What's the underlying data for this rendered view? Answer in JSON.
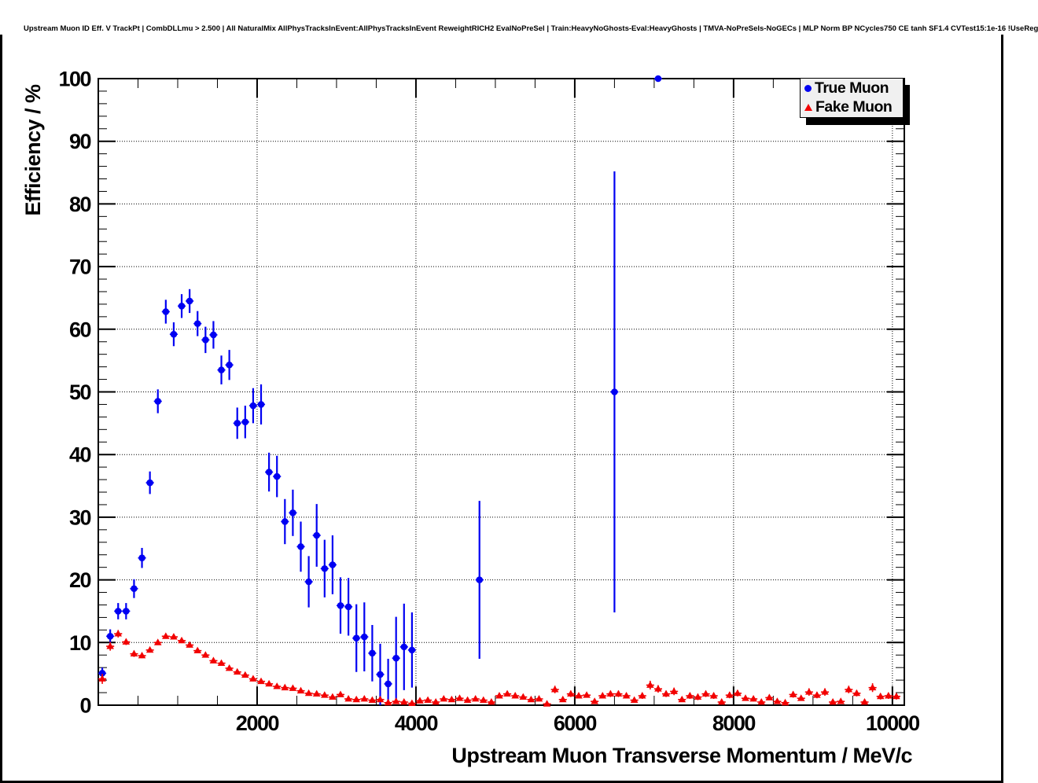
{
  "window": {
    "title": "Upstream Muon ID Eff. V TrackPt | CombDLLmu > 2.500 | All NaturalMix AllPhysTracksInEvent:AllPhysTracksInEvent ReweightRICH2 EvalNoPreSel | Train:HeavyNoGhosts-Eval:HeavyGhosts | TMVA-NoPreSels-NoGECs | MLP Norm BP NCycles750 CE tanh SF1.4 CVTest15:1e-16 !UseReg"
  },
  "chart_data": {
    "type": "scatter",
    "title": "Upstream Muon ID Eff. V TrackPt | CombDLLmu > 2.500 | All NaturalMix AllPhysTracksInEvent:AllPhysTracksInEvent ReweightRICH2 EvalNoPreSel | Train:HeavyNoGhosts-Eval:HeavyGhosts | TMVA-NoPreSels-NoGECs | MLP Norm BP NCycles750 CE tanh SF1.4 CVTest15:1e-16 !UseReg",
    "xlabel": "Upstream Muon Transverse Momentum / MeV/c",
    "ylabel": "Efficiency / %",
    "xlim": [
      0,
      10150
    ],
    "ylim": [
      0,
      100
    ],
    "xticks": [
      2000,
      4000,
      6000,
      8000,
      10000
    ],
    "yticks": [
      0,
      10,
      20,
      30,
      40,
      50,
      60,
      70,
      80,
      90,
      100
    ],
    "x_minor_step": 500,
    "y_minor_step": 2,
    "grid": true,
    "grid_style": "dotted",
    "legend_position": "top-right",
    "legend_fill": "#f0f0f0",
    "series": [
      {
        "name": "True Muon",
        "color": "#0000f2",
        "marker": "circle",
        "line_width": 2.2,
        "x_halfwidth": 50,
        "points": [
          [
            50,
            5.1,
            0.9
          ],
          [
            150,
            11.0,
            1.1
          ],
          [
            250,
            15.0,
            1.3
          ],
          [
            350,
            15.0,
            1.3
          ],
          [
            450,
            18.6,
            1.5
          ],
          [
            550,
            23.5,
            1.6
          ],
          [
            650,
            35.5,
            1.8
          ],
          [
            750,
            48.5,
            1.9
          ],
          [
            850,
            62.8,
            1.9
          ],
          [
            950,
            59.2,
            1.9
          ],
          [
            1050,
            63.7,
            1.9
          ],
          [
            1150,
            64.5,
            1.9
          ],
          [
            1250,
            60.9,
            2.0
          ],
          [
            1350,
            58.3,
            2.1
          ],
          [
            1450,
            59.1,
            2.2
          ],
          [
            1550,
            53.5,
            2.3
          ],
          [
            1650,
            54.3,
            2.4
          ],
          [
            1750,
            45.0,
            2.5
          ],
          [
            1850,
            45.2,
            2.6
          ],
          [
            1950,
            47.8,
            2.8
          ],
          [
            2050,
            48.0,
            3.2
          ],
          [
            2150,
            37.2,
            3.1
          ],
          [
            2250,
            36.5,
            3.3
          ],
          [
            2350,
            29.3,
            3.6
          ],
          [
            2450,
            30.7,
            3.7
          ],
          [
            2550,
            25.3,
            4.0
          ],
          [
            2650,
            19.7,
            4.1
          ],
          [
            2750,
            27.1,
            5.0
          ],
          [
            2850,
            21.8,
            4.6
          ],
          [
            2950,
            22.4,
            4.7
          ],
          [
            3050,
            15.9,
            4.5
          ],
          [
            3150,
            15.7,
            4.6
          ],
          [
            3250,
            10.7,
            5.4
          ],
          [
            3350,
            10.9,
            5.5
          ],
          [
            3450,
            8.3,
            4.5
          ],
          [
            3550,
            4.9,
            4.9
          ],
          [
            3650,
            3.4,
            4.0
          ],
          [
            3750,
            7.5,
            6.6
          ],
          [
            3850,
            9.3,
            6.9
          ],
          [
            3950,
            8.8,
            6.0
          ],
          [
            4800,
            20.0,
            12.6
          ],
          [
            6500,
            50.0,
            35.2
          ],
          [
            7050,
            100.0,
            0
          ]
        ]
      },
      {
        "name": "Fake Muon",
        "color": "#f20000",
        "marker": "triangle",
        "line_width": 1.6,
        "x_halfwidth": 50,
        "points": [
          [
            50,
            4.2,
            0.8
          ],
          [
            150,
            9.4,
            0.7
          ],
          [
            250,
            11.4,
            0.6
          ],
          [
            350,
            10.1,
            0.5
          ],
          [
            450,
            8.2,
            0.5
          ],
          [
            550,
            7.9,
            0.4
          ],
          [
            650,
            8.8,
            0.4
          ],
          [
            750,
            10.0,
            0.4
          ],
          [
            850,
            11.0,
            0.4
          ],
          [
            950,
            10.9,
            0.4
          ],
          [
            1050,
            10.3,
            0.4
          ],
          [
            1150,
            9.6,
            0.4
          ],
          [
            1250,
            8.7,
            0.4
          ],
          [
            1350,
            8.0,
            0.4
          ],
          [
            1450,
            7.1,
            0.4
          ],
          [
            1550,
            6.7,
            0.4
          ],
          [
            1650,
            5.9,
            0.4
          ],
          [
            1750,
            5.3,
            0.4
          ],
          [
            1850,
            4.8,
            0.4
          ],
          [
            1950,
            4.2,
            0.4
          ],
          [
            2050,
            3.8,
            0.4
          ],
          [
            2150,
            3.4,
            0.3
          ],
          [
            2250,
            3.0,
            0.3
          ],
          [
            2350,
            2.8,
            0.3
          ],
          [
            2450,
            2.7,
            0.3
          ],
          [
            2550,
            2.3,
            0.3
          ],
          [
            2650,
            1.9,
            0.3
          ],
          [
            2750,
            1.8,
            0.3
          ],
          [
            2850,
            1.6,
            0.3
          ],
          [
            2950,
            1.3,
            0.3
          ],
          [
            3050,
            1.7,
            0.3
          ],
          [
            3150,
            1.0,
            0.2
          ],
          [
            3250,
            0.9,
            0.2
          ],
          [
            3350,
            1.0,
            0.2
          ],
          [
            3450,
            0.8,
            0.2
          ],
          [
            3550,
            0.9,
            0.2
          ],
          [
            3650,
            0.4,
            0.2
          ],
          [
            3750,
            0.6,
            0.2
          ],
          [
            3850,
            0.5,
            0.2
          ],
          [
            3950,
            0.3,
            0.2
          ],
          [
            4050,
            0.7,
            0.3
          ],
          [
            4150,
            0.8,
            0.3
          ],
          [
            4250,
            0.5,
            0.2
          ],
          [
            4350,
            1.0,
            0.3
          ],
          [
            4450,
            0.9,
            0.3
          ],
          [
            4550,
            1.1,
            0.3
          ],
          [
            4650,
            0.8,
            0.3
          ],
          [
            4750,
            1.0,
            0.3
          ],
          [
            4850,
            0.8,
            0.3
          ],
          [
            4950,
            0.5,
            0.3
          ],
          [
            5050,
            1.5,
            0.4
          ],
          [
            5150,
            1.8,
            0.4
          ],
          [
            5250,
            1.5,
            0.4
          ],
          [
            5350,
            1.3,
            0.4
          ],
          [
            5450,
            0.9,
            0.3
          ],
          [
            5550,
            1.0,
            0.3
          ],
          [
            5650,
            0.2,
            0.2
          ],
          [
            5750,
            2.5,
            0.6
          ],
          [
            5850,
            0.9,
            0.4
          ],
          [
            5950,
            1.8,
            0.5
          ],
          [
            6050,
            1.5,
            0.4
          ],
          [
            6150,
            1.6,
            0.4
          ],
          [
            6250,
            0.6,
            0.3
          ],
          [
            6350,
            1.5,
            0.4
          ],
          [
            6450,
            1.8,
            0.5
          ],
          [
            6550,
            1.8,
            0.5
          ],
          [
            6650,
            1.5,
            0.4
          ],
          [
            6750,
            0.8,
            0.4
          ],
          [
            6850,
            1.5,
            0.5
          ],
          [
            6950,
            3.2,
            0.7
          ],
          [
            7050,
            2.6,
            0.6
          ],
          [
            7150,
            1.8,
            0.5
          ],
          [
            7250,
            2.2,
            0.6
          ],
          [
            7350,
            0.9,
            0.4
          ],
          [
            7450,
            1.5,
            0.5
          ],
          [
            7550,
            1.3,
            0.5
          ],
          [
            7650,
            1.8,
            0.5
          ],
          [
            7750,
            1.5,
            0.5
          ],
          [
            7850,
            0.5,
            0.3
          ],
          [
            7950,
            1.6,
            0.5
          ],
          [
            8050,
            1.9,
            0.5
          ],
          [
            8150,
            1.1,
            0.4
          ],
          [
            8250,
            1.0,
            0.4
          ],
          [
            8350,
            0.5,
            0.3
          ],
          [
            8450,
            1.2,
            0.4
          ],
          [
            8550,
            0.6,
            0.3
          ],
          [
            8650,
            0.4,
            0.3
          ],
          [
            8750,
            1.7,
            0.5
          ],
          [
            8850,
            1.1,
            0.4
          ],
          [
            8950,
            2.1,
            0.6
          ],
          [
            9050,
            1.6,
            0.5
          ],
          [
            9150,
            2.1,
            0.6
          ],
          [
            9250,
            0.5,
            0.3
          ],
          [
            9350,
            0.6,
            0.3
          ],
          [
            9450,
            2.5,
            0.6
          ],
          [
            9550,
            1.9,
            0.5
          ],
          [
            9650,
            0.5,
            0.3
          ],
          [
            9750,
            2.8,
            0.7
          ],
          [
            9850,
            1.4,
            0.5
          ],
          [
            9950,
            1.5,
            0.5
          ],
          [
            10050,
            1.4,
            0.5
          ]
        ]
      }
    ]
  },
  "colors": {
    "true_muon": "#0000f2",
    "fake_muon": "#f20000",
    "legend_fill": "#f0f0f0",
    "frame": "#000000",
    "background": "#ffffff"
  }
}
